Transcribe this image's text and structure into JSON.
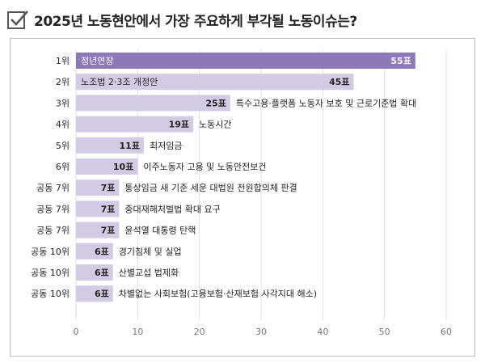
{
  "header": {
    "title": "2025년 노동현안에서 가장 주요하게 부각될 노동이슈는?",
    "icon": "checkbox-check-icon"
  },
  "colors": {
    "top_bar": "#8e79b8",
    "bar": "#d3cbe6",
    "grid": "#e2e2e2",
    "axis_text": "#777777"
  },
  "chart_data": {
    "type": "bar",
    "orientation": "horizontal",
    "title": "2025년 노동현안에서 가장 주요하게 부각될 노동이슈는?",
    "xlabel": "",
    "ylabel": "",
    "xlim": [
      0,
      60
    ],
    "xticks": [
      0,
      10,
      20,
      30,
      40,
      50,
      60
    ],
    "grid": true,
    "value_suffix": "표",
    "items": [
      {
        "rank": "1위",
        "label": "정년연장",
        "value": 55
      },
      {
        "rank": "2위",
        "label": "노조법 2·3조 개정안",
        "value": 45
      },
      {
        "rank": "3위",
        "label": "특수고용·플랫폼 노동자 보호 및 근로기준법 확대",
        "value": 25
      },
      {
        "rank": "4위",
        "label": "노동시간",
        "value": 19
      },
      {
        "rank": "5위",
        "label": "최저임금",
        "value": 11
      },
      {
        "rank": "6위",
        "label": "이주노동자 고용 및 노동안전보건",
        "value": 10
      },
      {
        "rank": "공동 7위",
        "label": "통상임금 새 기준 세운 대법원 전원합의체 판결",
        "value": 7
      },
      {
        "rank": "공동 7위",
        "label": "중대재해처벌법 확대 요구",
        "value": 7
      },
      {
        "rank": "공동 7위",
        "label": "윤석열 대통령 탄핵",
        "value": 7
      },
      {
        "rank": "공동 10위",
        "label": "경기침체 및 실업",
        "value": 6
      },
      {
        "rank": "공동 10위",
        "label": "산별교섭 법제화",
        "value": 6
      },
      {
        "rank": "공동 10위",
        "label": "차별없는 사회보험(고용보험·산재보험 사각지대 해소)",
        "value": 6
      }
    ]
  }
}
